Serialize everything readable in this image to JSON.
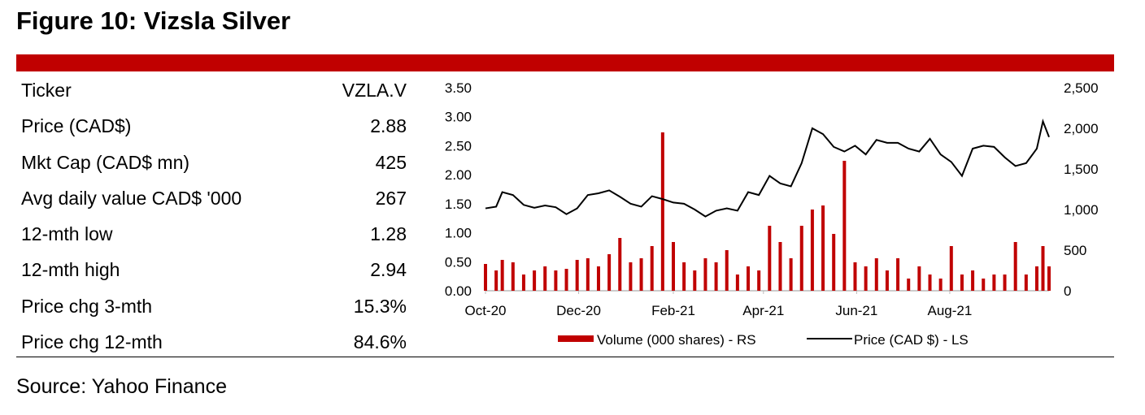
{
  "title": "Figure 10: Vizsla Silver",
  "source": "Source: Yahoo Finance",
  "table": [
    {
      "label": "Ticker",
      "value": "VZLA.V"
    },
    {
      "label": "Price (CAD$)",
      "value": "2.88"
    },
    {
      "label": "Mkt Cap (CAD$ mn)",
      "value": "425"
    },
    {
      "label": "Avg daily value CAD$ '000",
      "value": "267"
    },
    {
      "label": "12-mth low",
      "value": "1.28"
    },
    {
      "label": "12-mth high",
      "value": "2.94"
    },
    {
      "label": "Price chg 3-mth",
      "value": "15.3%"
    },
    {
      "label": "Price chg 12-mth",
      "value": "84.6%"
    }
  ],
  "colors": {
    "accent": "#c00000",
    "price_line": "#000000"
  },
  "chart_data": {
    "type": "bar+line",
    "x_tick_labels": [
      "Oct-20",
      "Dec-20",
      "Feb-21",
      "Apr-21",
      "Jun-21",
      "Aug-21"
    ],
    "x_tick_dates": [
      "2020-10-01",
      "2020-12-01",
      "2021-02-01",
      "2021-04-01",
      "2021-06-01",
      "2021-08-01"
    ],
    "x_range": [
      "2020-10-01",
      "2021-10-05"
    ],
    "y_left": {
      "range": [
        0,
        3.5
      ],
      "ticks": [
        "0.00",
        "0.50",
        "1.00",
        "1.50",
        "2.00",
        "2.50",
        "3.00",
        "3.50"
      ]
    },
    "y_right": {
      "range": [
        0,
        2500
      ],
      "ticks": [
        "0",
        "500",
        "1,000",
        "1,500",
        "2,000",
        "2,500"
      ]
    },
    "legend": {
      "placement": "bottom",
      "entries": [
        "Volume (000 shares) - RS",
        "Price (CAD $) - LS"
      ]
    },
    "grid": false,
    "dates": [
      "2020-10-01",
      "2020-10-08",
      "2020-10-12",
      "2020-10-19",
      "2020-10-26",
      "2020-11-02",
      "2020-11-09",
      "2020-11-16",
      "2020-11-23",
      "2020-11-30",
      "2020-12-07",
      "2020-12-14",
      "2020-12-21",
      "2020-12-28",
      "2021-01-04",
      "2021-01-11",
      "2021-01-18",
      "2021-01-25",
      "2021-02-01",
      "2021-02-08",
      "2021-02-15",
      "2021-02-22",
      "2021-03-01",
      "2021-03-08",
      "2021-03-15",
      "2021-03-22",
      "2021-03-29",
      "2021-04-05",
      "2021-04-12",
      "2021-04-19",
      "2021-04-26",
      "2021-05-03",
      "2021-05-10",
      "2021-05-17",
      "2021-05-24",
      "2021-05-31",
      "2021-06-07",
      "2021-06-14",
      "2021-06-21",
      "2021-06-28",
      "2021-07-05",
      "2021-07-12",
      "2021-07-19",
      "2021-07-26",
      "2021-08-02",
      "2021-08-09",
      "2021-08-16",
      "2021-08-23",
      "2021-08-30",
      "2021-09-06",
      "2021-09-13",
      "2021-09-20",
      "2021-09-27",
      "2021-10-01",
      "2021-10-05"
    ],
    "series": [
      {
        "name": "Volume (000 shares) - RS",
        "axis": "right",
        "type": "bar",
        "values": [
          330,
          250,
          380,
          350,
          200,
          250,
          300,
          250,
          270,
          380,
          400,
          300,
          450,
          650,
          350,
          400,
          550,
          1950,
          600,
          350,
          250,
          400,
          350,
          500,
          200,
          300,
          250,
          800,
          600,
          400,
          800,
          1000,
          1050,
          700,
          1600,
          350,
          300,
          400,
          250,
          400,
          150,
          300,
          200,
          150,
          550,
          200,
          250,
          150,
          200,
          200,
          600,
          200,
          300,
          550,
          300
        ]
      },
      {
        "name": "Price (CAD $) - LS",
        "axis": "left",
        "type": "line",
        "values": [
          1.42,
          1.45,
          1.7,
          1.65,
          1.48,
          1.43,
          1.47,
          1.44,
          1.32,
          1.42,
          1.65,
          1.68,
          1.73,
          1.62,
          1.5,
          1.45,
          1.63,
          1.58,
          1.52,
          1.5,
          1.4,
          1.28,
          1.38,
          1.42,
          1.38,
          1.7,
          1.65,
          1.98,
          1.85,
          1.8,
          2.2,
          2.8,
          2.7,
          2.48,
          2.4,
          2.5,
          2.35,
          2.6,
          2.55,
          2.55,
          2.45,
          2.4,
          2.62,
          2.35,
          2.22,
          1.98,
          2.45,
          2.5,
          2.48,
          2.3,
          2.15,
          2.2,
          2.45,
          2.92,
          2.65
        ]
      }
    ]
  }
}
